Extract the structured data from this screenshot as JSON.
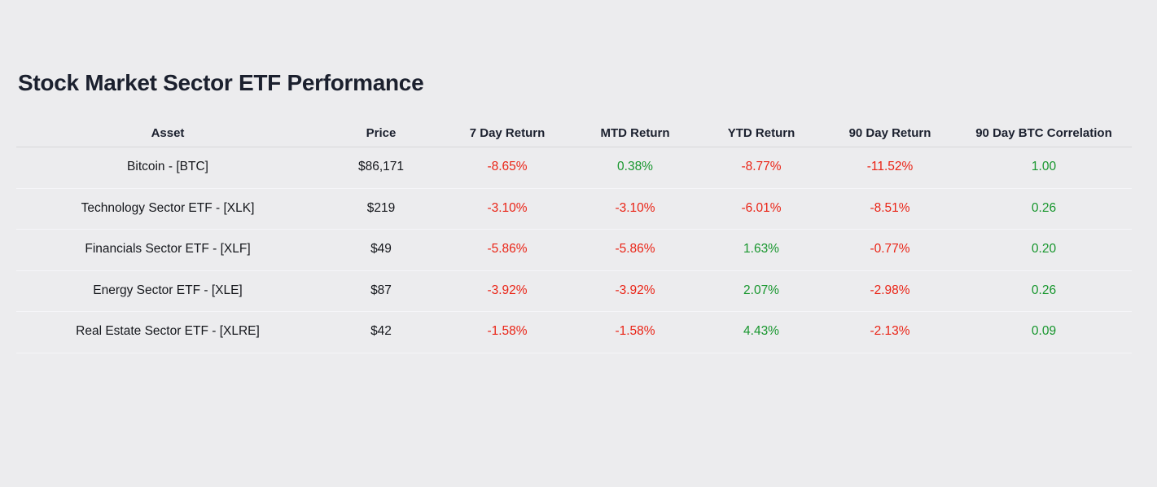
{
  "title": "Stock Market Sector ETF Performance",
  "colors": {
    "positive": "#17962d",
    "negative": "#ea2315",
    "heading": "#1b202e",
    "text": "#15171c",
    "background": "#ececee"
  },
  "table": {
    "columns": [
      "Asset",
      "Price",
      "7 Day Return",
      "MTD Return",
      "YTD Return",
      "90 Day Return",
      "90 Day BTC Correlation"
    ],
    "rows": [
      {
        "asset": "Bitcoin - [BTC]",
        "price": "$86,171",
        "cells": [
          {
            "text": "-8.65%",
            "sentiment": "negative"
          },
          {
            "text": "0.38%",
            "sentiment": "positive"
          },
          {
            "text": "-8.77%",
            "sentiment": "negative"
          },
          {
            "text": "-11.52%",
            "sentiment": "negative"
          },
          {
            "text": "1.00",
            "sentiment": "positive"
          }
        ]
      },
      {
        "asset": "Technology Sector ETF - [XLK]",
        "price": "$219",
        "cells": [
          {
            "text": "-3.10%",
            "sentiment": "negative"
          },
          {
            "text": "-3.10%",
            "sentiment": "negative"
          },
          {
            "text": "-6.01%",
            "sentiment": "negative"
          },
          {
            "text": "-8.51%",
            "sentiment": "negative"
          },
          {
            "text": "0.26",
            "sentiment": "positive"
          }
        ]
      },
      {
        "asset": "Financials Sector ETF - [XLF]",
        "price": "$49",
        "cells": [
          {
            "text": "-5.86%",
            "sentiment": "negative"
          },
          {
            "text": "-5.86%",
            "sentiment": "negative"
          },
          {
            "text": "1.63%",
            "sentiment": "positive"
          },
          {
            "text": "-0.77%",
            "sentiment": "negative"
          },
          {
            "text": "0.20",
            "sentiment": "positive"
          }
        ]
      },
      {
        "asset": "Energy Sector ETF - [XLE]",
        "price": "$87",
        "cells": [
          {
            "text": "-3.92%",
            "sentiment": "negative"
          },
          {
            "text": "-3.92%",
            "sentiment": "negative"
          },
          {
            "text": "2.07%",
            "sentiment": "positive"
          },
          {
            "text": "-2.98%",
            "sentiment": "negative"
          },
          {
            "text": "0.26",
            "sentiment": "positive"
          }
        ]
      },
      {
        "asset": "Real Estate Sector ETF - [XLRE]",
        "price": "$42",
        "cells": [
          {
            "text": "-1.58%",
            "sentiment": "negative"
          },
          {
            "text": "-1.58%",
            "sentiment": "negative"
          },
          {
            "text": "4.43%",
            "sentiment": "positive"
          },
          {
            "text": "-2.13%",
            "sentiment": "negative"
          },
          {
            "text": "0.09",
            "sentiment": "positive"
          }
        ]
      }
    ]
  },
  "chart_data": {
    "type": "table",
    "title": "Stock Market Sector ETF Performance",
    "columns": [
      "Asset",
      "Price",
      "7 Day Return",
      "MTD Return",
      "YTD Return",
      "90 Day Return",
      "90 Day BTC Correlation"
    ],
    "rows": [
      [
        "Bitcoin - [BTC]",
        "$86,171",
        "-8.65%",
        "0.38%",
        "-8.77%",
        "-11.52%",
        "1.00"
      ],
      [
        "Technology Sector ETF - [XLK]",
        "$219",
        "-3.10%",
        "-3.10%",
        "-6.01%",
        "-8.51%",
        "0.26"
      ],
      [
        "Financials Sector ETF - [XLF]",
        "$49",
        "-5.86%",
        "-5.86%",
        "1.63%",
        "-0.77%",
        "0.20"
      ],
      [
        "Energy Sector ETF - [XLE]",
        "$87",
        "-3.92%",
        "-3.92%",
        "2.07%",
        "-2.98%",
        "0.26"
      ],
      [
        "Real Estate Sector ETF - [XLRE]",
        "$42",
        "-1.58%",
        "-1.58%",
        "4.43%",
        "-2.13%",
        "0.09"
      ]
    ],
    "color_coding": "negative values red, positive values green"
  }
}
